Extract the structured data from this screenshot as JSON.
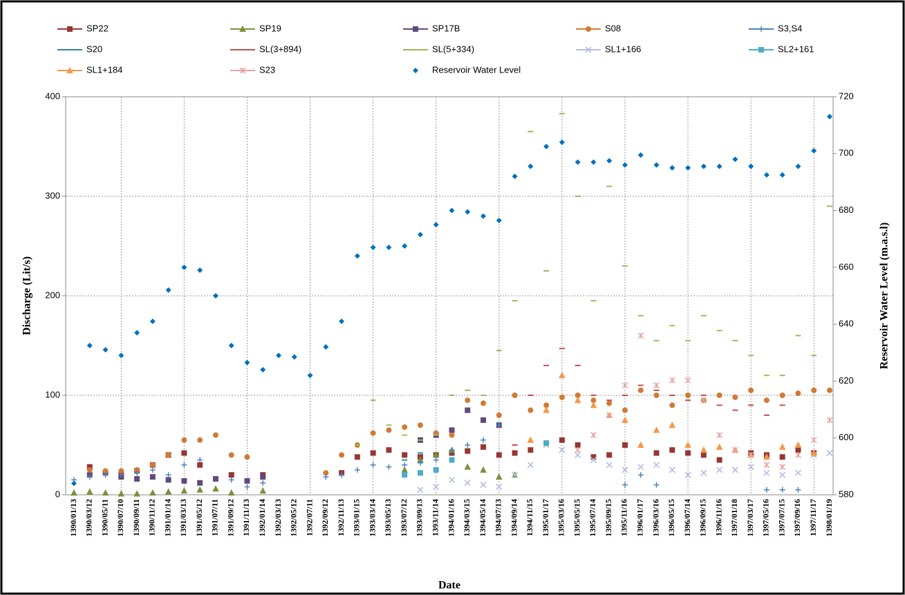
{
  "chart_data": {
    "type": "scatter",
    "x_label": "Date",
    "y_label": "Discharge (Lit/s)",
    "y2_label": "Reservoir Water  Level (m.a.s.l)",
    "categories": [
      "1390/01/13",
      "1390/03/12",
      "1390/05/11",
      "1390/07/10",
      "1390/09/11",
      "1390/11/12",
      "1391/01/14",
      "1391/03/13",
      "1391/05/12",
      "1391/07/11",
      "1391/09/12",
      "1391/11/13",
      "1392/01/14",
      "1392/03/13",
      "1392/05/12",
      "1392/07/11",
      "1392/09/12",
      "1392/11/13",
      "1393/01/15",
      "1393/03/14",
      "1393/05/13",
      "1393/07/12",
      "1393/09/13",
      "1393/11/14",
      "1394/01/16",
      "1394/03/15",
      "1394/05/14",
      "1394/07/13",
      "1394/09/14",
      "1394/11/15",
      "1395/01/17",
      "1395/03/16",
      "1395/05/15",
      "1395/07/14",
      "1395/09/15",
      "1395/11/16",
      "1396/01/17",
      "1396/03/16",
      "1396/05/15",
      "1396/07/14",
      "1396/09/15",
      "1396/11/16",
      "1397/01/18",
      "1397/03/17",
      "1397/05/16",
      "1397/07/15",
      "1397/09/16",
      "1397/11/17",
      "1398/01/19"
    ],
    "ylim": [
      0,
      400
    ],
    "yticks": [
      0,
      100,
      200,
      300,
      400
    ],
    "y2lim": [
      580,
      720
    ],
    "y2ticks": [
      580,
      600,
      620,
      640,
      660,
      680,
      700,
      720
    ],
    "grid": true,
    "series": [
      {
        "name": "SP22",
        "color": "#953735",
        "marker": "square",
        "values": [
          null,
          28,
          22,
          20,
          24,
          30,
          40,
          42,
          30,
          null,
          20,
          null,
          20,
          null,
          null,
          null,
          null,
          22,
          38,
          42,
          45,
          40,
          38,
          40,
          42,
          44,
          48,
          40,
          42,
          45,
          null,
          55,
          50,
          38,
          40,
          50,
          null,
          42,
          45,
          42,
          40,
          35,
          null,
          42,
          40,
          38,
          45,
          42,
          null
        ]
      },
      {
        "name": "SP19",
        "color": "#77933c",
        "marker": "triangle",
        "values": [
          2,
          3,
          2,
          1,
          1,
          2,
          3,
          4,
          5,
          6,
          2,
          null,
          4,
          null,
          null,
          null,
          null,
          null,
          null,
          null,
          null,
          25,
          35,
          40,
          45,
          28,
          25,
          18,
          20,
          null,
          null,
          null,
          null,
          null,
          null,
          null,
          null,
          null,
          null,
          null,
          null,
          null,
          null,
          null,
          null,
          null,
          null,
          null,
          null
        ]
      },
      {
        "name": "SP17B",
        "color": "#604a7b",
        "marker": "square",
        "values": [
          null,
          20,
          22,
          18,
          16,
          18,
          15,
          14,
          12,
          16,
          null,
          14,
          18,
          null,
          null,
          null,
          null,
          null,
          null,
          null,
          null,
          null,
          55,
          60,
          65,
          85,
          75,
          70,
          null,
          null,
          null,
          null,
          null,
          null,
          null,
          null,
          null,
          null,
          null,
          null,
          null,
          null,
          null,
          null,
          null,
          null,
          null,
          null,
          null
        ]
      },
      {
        "name": "S08",
        "color": "#d07a35",
        "marker": "circle",
        "values": [
          null,
          25,
          24,
          24,
          25,
          30,
          40,
          55,
          55,
          60,
          40,
          38,
          null,
          null,
          null,
          null,
          22,
          40,
          50,
          62,
          65,
          68,
          70,
          62,
          60,
          95,
          92,
          80,
          100,
          85,
          90,
          98,
          100,
          95,
          92,
          85,
          105,
          100,
          90,
          100,
          95,
          100,
          98,
          105,
          95,
          100,
          102,
          105,
          105
        ]
      },
      {
        "name": "S3,S4",
        "color": "#4f81bd",
        "marker": "plus",
        "values": [
          15,
          18,
          20,
          20,
          22,
          25,
          20,
          30,
          35,
          null,
          15,
          8,
          12,
          null,
          null,
          null,
          18,
          20,
          25,
          30,
          28,
          30,
          32,
          35,
          45,
          50,
          55,
          70,
          null,
          null,
          null,
          null,
          null,
          null,
          null,
          10,
          20,
          10,
          null,
          null,
          null,
          null,
          null,
          null,
          5,
          5,
          5,
          null,
          null
        ]
      },
      {
        "name": "S20",
        "color": "#31859c",
        "marker": "dash",
        "values": [
          null,
          null,
          null,
          null,
          null,
          null,
          null,
          null,
          null,
          null,
          null,
          null,
          null,
          null,
          null,
          null,
          null,
          null,
          null,
          null,
          null,
          35,
          42,
          null,
          null,
          null,
          null,
          null,
          null,
          null,
          null,
          null,
          null,
          null,
          null,
          null,
          null,
          null,
          null,
          null,
          null,
          null,
          null,
          null,
          null,
          null,
          null,
          null,
          null
        ]
      },
      {
        "name": "SL(3+894)",
        "color": "#c0504d",
        "marker": "dash",
        "values": [
          null,
          null,
          null,
          null,
          null,
          null,
          null,
          null,
          null,
          null,
          null,
          null,
          null,
          null,
          null,
          null,
          null,
          null,
          null,
          null,
          null,
          null,
          null,
          null,
          null,
          null,
          null,
          null,
          50,
          100,
          130,
          147,
          130,
          100,
          95,
          100,
          110,
          105,
          100,
          95,
          100,
          90,
          85,
          90,
          80,
          90,
          null,
          null,
          null
        ]
      },
      {
        "name": "SL(5+334)",
        "color": "#9bbb59",
        "marker": "dash",
        "values": [
          null,
          null,
          null,
          null,
          null,
          null,
          null,
          null,
          null,
          null,
          null,
          null,
          null,
          null,
          null,
          null,
          null,
          null,
          50,
          95,
          70,
          60,
          55,
          60,
          100,
          105,
          100,
          145,
          195,
          365,
          225,
          383,
          300,
          195,
          310,
          230,
          180,
          155,
          170,
          155,
          180,
          165,
          155,
          140,
          120,
          120,
          160,
          140,
          290
        ]
      },
      {
        "name": "SL1+166",
        "color": "#b3bde0",
        "marker": "x",
        "values": [
          null,
          null,
          null,
          null,
          null,
          null,
          null,
          null,
          null,
          null,
          null,
          null,
          null,
          null,
          null,
          null,
          null,
          null,
          null,
          null,
          null,
          null,
          5,
          8,
          15,
          12,
          10,
          8,
          20,
          30,
          50,
          45,
          40,
          35,
          30,
          25,
          28,
          30,
          25,
          20,
          22,
          25,
          25,
          28,
          22,
          20,
          22,
          40,
          42
        ]
      },
      {
        "name": "SL2+161",
        "color": "#4bacc6",
        "marker": "square",
        "values": [
          null,
          null,
          null,
          null,
          null,
          null,
          null,
          null,
          null,
          null,
          null,
          null,
          null,
          null,
          null,
          null,
          null,
          null,
          null,
          null,
          null,
          20,
          22,
          25,
          35,
          null,
          null,
          null,
          null,
          null,
          52,
          null,
          null,
          null,
          null,
          null,
          null,
          null,
          null,
          null,
          null,
          null,
          null,
          null,
          null,
          null,
          null,
          null,
          null
        ]
      },
      {
        "name": "SL1+184",
        "color": "#f79646",
        "marker": "triangle",
        "values": [
          null,
          null,
          null,
          null,
          null,
          null,
          null,
          null,
          null,
          null,
          null,
          null,
          null,
          null,
          null,
          null,
          null,
          null,
          null,
          null,
          null,
          null,
          null,
          null,
          null,
          null,
          null,
          null,
          null,
          55,
          85,
          120,
          95,
          90,
          80,
          75,
          50,
          65,
          70,
          50,
          45,
          48,
          45,
          40,
          38,
          48,
          50,
          42,
          null
        ]
      },
      {
        "name": "S23",
        "color": "#e6a3a3",
        "marker": "star",
        "values": [
          null,
          null,
          null,
          null,
          null,
          null,
          null,
          null,
          null,
          null,
          null,
          null,
          null,
          null,
          null,
          null,
          null,
          null,
          null,
          null,
          null,
          null,
          null,
          null,
          null,
          null,
          null,
          null,
          null,
          null,
          null,
          null,
          45,
          60,
          80,
          110,
          160,
          110,
          115,
          115,
          95,
          60,
          45,
          40,
          30,
          28,
          40,
          55,
          75
        ]
      },
      {
        "name": "Reservoir Water Level",
        "color": "#0070c0",
        "marker": "diamond",
        "axis": "y2",
        "values": [
          584,
          632.5,
          631,
          629,
          637,
          641,
          652,
          660,
          659,
          650,
          632.5,
          626.5,
          624,
          629,
          628.5,
          622,
          632,
          641,
          664,
          667,
          667,
          667.5,
          671.5,
          675,
          680,
          679.5,
          678,
          676.5,
          692,
          695.5,
          702.5,
          704,
          697,
          697,
          697.5,
          696,
          699.5,
          696,
          695,
          695,
          695.5,
          695.5,
          698,
          695.5,
          692.5,
          692.5,
          695.5,
          701,
          713
        ]
      }
    ]
  }
}
